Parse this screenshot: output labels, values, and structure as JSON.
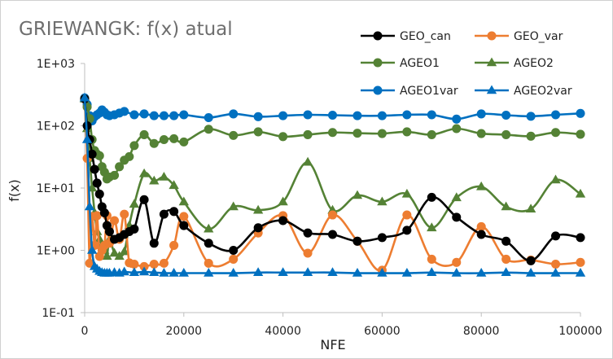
{
  "chart_data": {
    "type": "line",
    "title": "GRIEWANGK: f(x) atual",
    "xlabel": "NFE",
    "ylabel": "f(x)",
    "xlim": [
      0,
      100000
    ],
    "ylim": [
      0.1,
      1000
    ],
    "y_scale": "log",
    "x_ticks": [
      "0",
      "20000",
      "40000",
      "60000",
      "80000",
      "100000"
    ],
    "x_tick_values": [
      0,
      20000,
      40000,
      60000,
      80000,
      100000
    ],
    "y_ticks": [
      "1E-01",
      "1E+00",
      "1E+01",
      "1E+02",
      "1E+03"
    ],
    "y_tick_values": [
      0.1,
      1,
      10,
      100,
      1000
    ],
    "grid": false,
    "legend_position": "top-right",
    "series": [
      {
        "name": "GEO_can",
        "color": "#000000",
        "marker": "circle",
        "x": [
          0,
          500,
          1000,
          1500,
          2000,
          2500,
          3000,
          3500,
          4000,
          4500,
          5000,
          6000,
          7000,
          8000,
          9000,
          10000,
          12000,
          14000,
          16000,
          18000,
          20000,
          25000,
          30000,
          35000,
          40000,
          45000,
          50000,
          55000,
          60000,
          65000,
          70000,
          75000,
          80000,
          85000,
          90000,
          95000,
          100000
        ],
        "y": [
          270,
          100,
          60,
          35,
          20,
          12,
          8,
          5,
          4,
          2.5,
          2,
          1.5,
          1.6,
          1.8,
          2.0,
          2.2,
          6.5,
          1.3,
          3.8,
          4.2,
          2.5,
          1.3,
          1.0,
          2.3,
          3.0,
          1.9,
          1.8,
          1.4,
          1.6,
          2.1,
          7.1,
          3.4,
          1.8,
          1.4,
          0.68,
          1.7,
          1.6
        ]
      },
      {
        "name": "GEO_var",
        "color": "#ed7d31",
        "marker": "circle",
        "x": [
          0,
          500,
          1000,
          1500,
          2000,
          2500,
          3000,
          3500,
          4000,
          4500,
          5000,
          6000,
          7000,
          8000,
          9000,
          10000,
          12000,
          14000,
          16000,
          18000,
          20000,
          25000,
          30000,
          35000,
          40000,
          45000,
          50000,
          55000,
          60000,
          65000,
          70000,
          75000,
          80000,
          85000,
          90000,
          95000,
          100000
        ],
        "y": [
          270,
          30,
          0.62,
          3.5,
          1.2,
          3.6,
          0.8,
          1.0,
          1.2,
          3.6,
          1.3,
          3.0,
          1.5,
          3.8,
          0.63,
          0.6,
          0.55,
          0.6,
          0.62,
          1.2,
          3.5,
          0.62,
          0.72,
          1.9,
          3.6,
          0.9,
          3.7,
          1.4,
          0.48,
          3.7,
          0.72,
          0.64,
          2.4,
          0.72,
          0.7,
          0.6,
          0.64
        ]
      },
      {
        "name": "AGEO1",
        "color": "#548235",
        "marker": "circle",
        "x": [
          0,
          500,
          1000,
          1500,
          2000,
          2500,
          3000,
          3500,
          4000,
          4500,
          5000,
          6000,
          7000,
          8000,
          9000,
          10000,
          12000,
          14000,
          16000,
          18000,
          20000,
          25000,
          30000,
          35000,
          40000,
          45000,
          50000,
          55000,
          60000,
          65000,
          70000,
          75000,
          80000,
          85000,
          90000,
          95000,
          100000
        ],
        "y": [
          270,
          200,
          130,
          60,
          40,
          35,
          33,
          22,
          18,
          14,
          15,
          16,
          22,
          28,
          32,
          48,
          72,
          52,
          60,
          62,
          55,
          88,
          70,
          80,
          67,
          72,
          78,
          76,
          75,
          80,
          72,
          90,
          75,
          72,
          68,
          78,
          73
        ]
      },
      {
        "name": "AGEO2",
        "color": "#548235",
        "marker": "triangle",
        "x": [
          0,
          500,
          1000,
          1500,
          2000,
          2500,
          3000,
          3500,
          4000,
          4500,
          5000,
          6000,
          7000,
          8000,
          9000,
          10000,
          12000,
          14000,
          16000,
          18000,
          20000,
          25000,
          30000,
          35000,
          40000,
          45000,
          50000,
          55000,
          60000,
          65000,
          70000,
          75000,
          80000,
          85000,
          90000,
          95000,
          100000
        ],
        "y": [
          270,
          90,
          30,
          10,
          4,
          2,
          1.5,
          1.2,
          1.0,
          0.8,
          1.5,
          0.9,
          0.8,
          0.95,
          2.5,
          5.5,
          17,
          13,
          15,
          11,
          6,
          2.2,
          5,
          4.4,
          6.0,
          26,
          4.4,
          7.6,
          6,
          8,
          2.3,
          7,
          10.5,
          5,
          4.6,
          13.5,
          8
        ]
      },
      {
        "name": "AGEO1var",
        "color": "#0070c0",
        "marker": "circle",
        "x": [
          0,
          500,
          1000,
          1500,
          2000,
          2500,
          3000,
          3500,
          4000,
          4500,
          5000,
          6000,
          7000,
          8000,
          10000,
          12000,
          14000,
          16000,
          18000,
          20000,
          25000,
          30000,
          35000,
          40000,
          45000,
          50000,
          55000,
          60000,
          65000,
          70000,
          75000,
          80000,
          85000,
          90000,
          95000,
          100000
        ],
        "y": [
          280,
          220,
          145,
          120,
          140,
          150,
          160,
          180,
          165,
          150,
          145,
          150,
          160,
          170,
          150,
          155,
          145,
          145,
          145,
          150,
          135,
          155,
          140,
          145,
          150,
          148,
          145,
          145,
          150,
          150,
          128,
          155,
          148,
          142,
          150,
          158
        ]
      },
      {
        "name": "AGEO2var",
        "color": "#0070c0",
        "marker": "triangle",
        "x": [
          0,
          500,
          1000,
          1500,
          2000,
          2500,
          3000,
          3500,
          4000,
          4500,
          5000,
          6000,
          7000,
          8000,
          10000,
          12000,
          14000,
          16000,
          18000,
          20000,
          25000,
          30000,
          35000,
          40000,
          45000,
          50000,
          55000,
          60000,
          65000,
          70000,
          75000,
          80000,
          85000,
          90000,
          95000,
          100000
        ],
        "y": [
          280,
          60,
          5,
          1.0,
          0.55,
          0.5,
          0.46,
          0.44,
          0.43,
          0.43,
          0.43,
          0.44,
          0.43,
          0.45,
          0.44,
          0.45,
          0.44,
          0.43,
          0.43,
          0.43,
          0.43,
          0.43,
          0.44,
          0.44,
          0.44,
          0.44,
          0.43,
          0.43,
          0.43,
          0.44,
          0.43,
          0.43,
          0.44,
          0.43,
          0.43,
          0.43
        ]
      }
    ]
  }
}
